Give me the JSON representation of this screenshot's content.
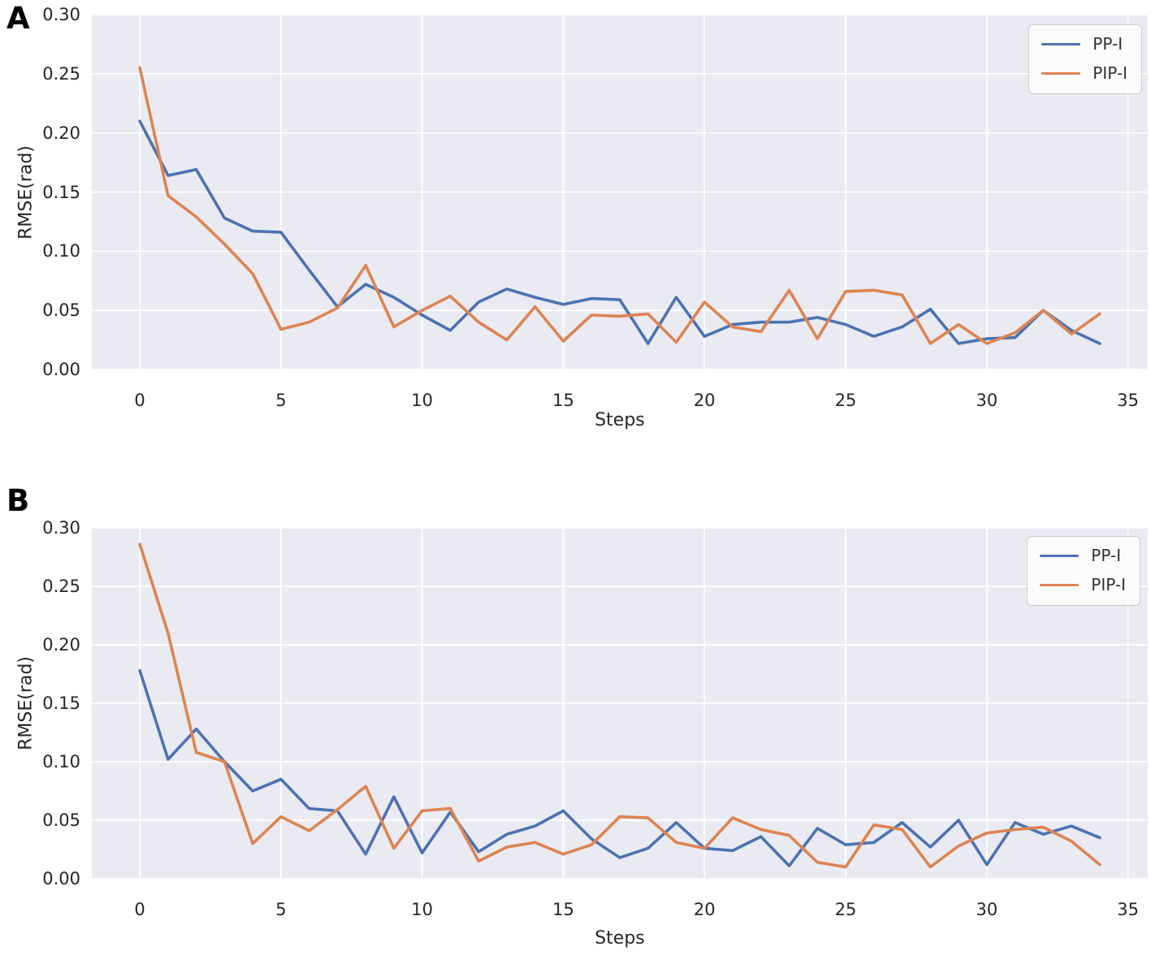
{
  "colors": {
    "figure_background": "#ffffff",
    "plot_background": "#eaeaf2",
    "gridline": "#ffffff",
    "tick_text": "#262626",
    "panel_letter": "#000000",
    "pp_i_line": "#4c72b0",
    "pip_i_line": "#dd8452",
    "legend_background": "#f7f7fa",
    "legend_border": "#cccccc"
  },
  "chart_data": [
    {
      "type": "line",
      "panel_label": "A",
      "title": "",
      "xlabel": "Steps",
      "ylabel": "RMSE(rad)",
      "legend_position": "upper right",
      "grid": true,
      "xlim": [
        -1.7,
        35.7
      ],
      "ylim": [
        0,
        0.3
      ],
      "x_ticks": [
        0,
        5,
        10,
        15,
        20,
        25,
        30,
        35
      ],
      "x_tick_labels": [
        "0",
        "5",
        "10",
        "15",
        "20",
        "25",
        "30",
        "35"
      ],
      "y_ticks": [
        0.0,
        0.05,
        0.1,
        0.15,
        0.2,
        0.25,
        0.3
      ],
      "y_tick_labels": [
        "0.00",
        "0.05",
        "0.10",
        "0.15",
        "0.20",
        "0.25",
        "0.30"
      ],
      "x": [
        0,
        1,
        2,
        3,
        4,
        5,
        6,
        7,
        8,
        9,
        10,
        11,
        12,
        13,
        14,
        15,
        16,
        17,
        18,
        19,
        20,
        21,
        22,
        23,
        24,
        25,
        26,
        27,
        28,
        29,
        30,
        31,
        32,
        33,
        34
      ],
      "series": [
        {
          "name": "PP-I",
          "color": "#4c72b0",
          "values": [
            0.21,
            0.164,
            0.169,
            0.128,
            0.117,
            0.116,
            0.084,
            0.053,
            0.072,
            0.061,
            0.046,
            0.033,
            0.057,
            0.068,
            0.061,
            0.055,
            0.06,
            0.059,
            0.022,
            0.061,
            0.028,
            0.038,
            0.04,
            0.04,
            0.044,
            0.038,
            0.028,
            0.036,
            0.051,
            0.022,
            0.026,
            0.027,
            0.05,
            0.033,
            0.022
          ]
        },
        {
          "name": "PIP-I",
          "color": "#dd8452",
          "values": [
            0.255,
            0.147,
            0.129,
            0.106,
            0.081,
            0.034,
            0.04,
            0.052,
            0.088,
            0.036,
            0.05,
            0.062,
            0.04,
            0.025,
            0.053,
            0.024,
            0.046,
            0.045,
            0.047,
            0.023,
            0.057,
            0.036,
            0.032,
            0.067,
            0.026,
            0.066,
            0.067,
            0.063,
            0.022,
            0.038,
            0.022,
            0.031,
            0.05,
            0.03,
            0.047
          ]
        }
      ]
    },
    {
      "type": "line",
      "panel_label": "B",
      "title": "",
      "xlabel": "Steps",
      "ylabel": "RMSE(rad)",
      "legend_position": "upper right",
      "grid": true,
      "xlim": [
        -1.7,
        35.7
      ],
      "ylim": [
        0,
        0.3
      ],
      "x_ticks": [
        0,
        5,
        10,
        15,
        20,
        25,
        30,
        35
      ],
      "x_tick_labels": [
        "0",
        "5",
        "10",
        "15",
        "20",
        "25",
        "30",
        "35"
      ],
      "y_ticks": [
        0.0,
        0.05,
        0.1,
        0.15,
        0.2,
        0.25,
        0.3
      ],
      "y_tick_labels": [
        "0.00",
        "0.05",
        "0.10",
        "0.15",
        "0.20",
        "0.25",
        "0.30"
      ],
      "x": [
        0,
        1,
        2,
        3,
        4,
        5,
        6,
        7,
        8,
        9,
        10,
        11,
        12,
        13,
        14,
        15,
        16,
        17,
        18,
        19,
        20,
        21,
        22,
        23,
        24,
        25,
        26,
        27,
        28,
        29,
        30,
        31,
        32,
        33,
        34
      ],
      "series": [
        {
          "name": "PP-I",
          "color": "#4c72b0",
          "values": [
            0.178,
            0.102,
            0.128,
            0.1,
            0.075,
            0.085,
            0.06,
            0.058,
            0.021,
            0.07,
            0.022,
            0.057,
            0.023,
            0.038,
            0.045,
            0.058,
            0.034,
            0.018,
            0.026,
            0.048,
            0.026,
            0.024,
            0.036,
            0.011,
            0.043,
            0.029,
            0.031,
            0.048,
            0.027,
            0.05,
            0.012,
            0.048,
            0.038,
            0.045,
            0.035
          ]
        },
        {
          "name": "PIP-I",
          "color": "#dd8452",
          "values": [
            0.286,
            0.21,
            0.108,
            0.1,
            0.03,
            0.053,
            0.041,
            0.059,
            0.079,
            0.026,
            0.058,
            0.06,
            0.015,
            0.027,
            0.031,
            0.021,
            0.029,
            0.053,
            0.052,
            0.031,
            0.026,
            0.052,
            0.042,
            0.037,
            0.014,
            0.01,
            0.046,
            0.042,
            0.01,
            0.028,
            0.039,
            0.042,
            0.044,
            0.032,
            0.012
          ]
        }
      ]
    }
  ]
}
